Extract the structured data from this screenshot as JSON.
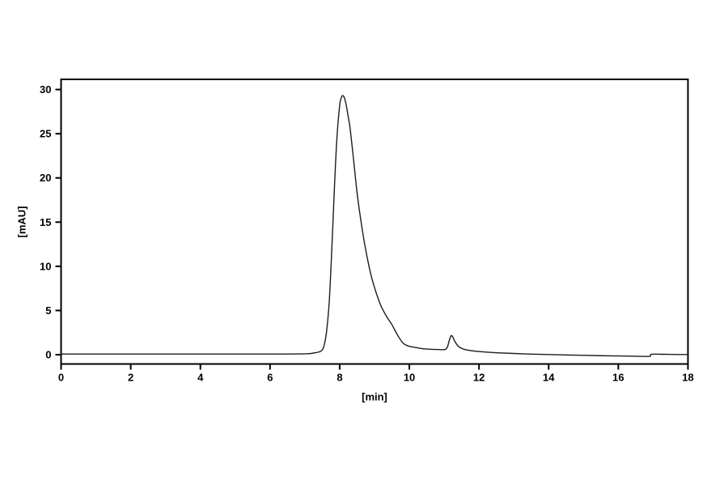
{
  "page": {
    "background": "#ffffff"
  },
  "chart_data": {
    "type": "line",
    "title": "",
    "xlabel": "[min]",
    "ylabel": "[mAU]",
    "xlim": [
      0,
      18
    ],
    "ylim": [
      -1.05,
      31.15
    ],
    "xticks": [
      0,
      2,
      4,
      6,
      8,
      10,
      12,
      14,
      16,
      18
    ],
    "yticks": [
      0,
      5,
      10,
      15,
      20,
      25,
      30
    ],
    "grid": false,
    "frame": true,
    "legend": "none",
    "line_color": "#1c1c1c",
    "frame_color": "#000000",
    "tick_label_color": "#000000",
    "background": "#ffffff",
    "peaks": [
      {
        "name": "main-peak",
        "retention_time_min": 8.08,
        "height_mAU": 29.3
      },
      {
        "name": "minor-peak",
        "retention_time_min": 11.2,
        "height_mAU": 2.15
      }
    ],
    "series": [
      {
        "name": "detector-signal",
        "points": [
          [
            0,
            0.08
          ],
          [
            1,
            0.08
          ],
          [
            2,
            0.08
          ],
          [
            3,
            0.08
          ],
          [
            4,
            0.08
          ],
          [
            5,
            0.08
          ],
          [
            5.5,
            0.08
          ],
          [
            6,
            0.08
          ],
          [
            6.5,
            0.08
          ],
          [
            6.8,
            0.09
          ],
          [
            7.0,
            0.1
          ],
          [
            7.15,
            0.13
          ],
          [
            7.3,
            0.22
          ],
          [
            7.4,
            0.3
          ],
          [
            7.45,
            0.38
          ],
          [
            7.5,
            0.55
          ],
          [
            7.55,
            1.0
          ],
          [
            7.62,
            2.5
          ],
          [
            7.7,
            6.0
          ],
          [
            7.78,
            12.5
          ],
          [
            7.85,
            19.0
          ],
          [
            7.92,
            24.5
          ],
          [
            8.0,
            28.2
          ],
          [
            8.05,
            29.1
          ],
          [
            8.08,
            29.3
          ],
          [
            8.12,
            29.2
          ],
          [
            8.18,
            28.4
          ],
          [
            8.25,
            26.8
          ],
          [
            8.3,
            25.6
          ],
          [
            8.4,
            22.0
          ],
          [
            8.5,
            18.3
          ],
          [
            8.6,
            15.4
          ],
          [
            8.7,
            12.9
          ],
          [
            8.8,
            10.8
          ],
          [
            8.9,
            9.0
          ],
          [
            9.0,
            7.6
          ],
          [
            9.1,
            6.4
          ],
          [
            9.2,
            5.4
          ],
          [
            9.35,
            4.3
          ],
          [
            9.5,
            3.4
          ],
          [
            9.65,
            2.3
          ],
          [
            9.8,
            1.4
          ],
          [
            9.9,
            1.1
          ],
          [
            10.0,
            0.95
          ],
          [
            10.2,
            0.8
          ],
          [
            10.4,
            0.67
          ],
          [
            10.6,
            0.62
          ],
          [
            10.8,
            0.59
          ],
          [
            10.95,
            0.57
          ],
          [
            11.05,
            0.62
          ],
          [
            11.1,
            0.95
          ],
          [
            11.15,
            1.65
          ],
          [
            11.2,
            2.15
          ],
          [
            11.25,
            2.0
          ],
          [
            11.3,
            1.55
          ],
          [
            11.4,
            0.98
          ],
          [
            11.5,
            0.72
          ],
          [
            11.6,
            0.58
          ],
          [
            11.8,
            0.44
          ],
          [
            12.0,
            0.36
          ],
          [
            12.3,
            0.27
          ],
          [
            12.6,
            0.2
          ],
          [
            13.0,
            0.14
          ],
          [
            13.5,
            0.07
          ],
          [
            14.0,
            0.02
          ],
          [
            14.5,
            -0.03
          ],
          [
            15.0,
            -0.07
          ],
          [
            15.5,
            -0.11
          ],
          [
            16.0,
            -0.14
          ],
          [
            16.5,
            -0.17
          ],
          [
            16.9,
            -0.19
          ],
          [
            16.95,
            0.05
          ],
          [
            17.3,
            0.05
          ],
          [
            17.6,
            0.03
          ],
          [
            18.0,
            0.02
          ]
        ]
      }
    ]
  }
}
